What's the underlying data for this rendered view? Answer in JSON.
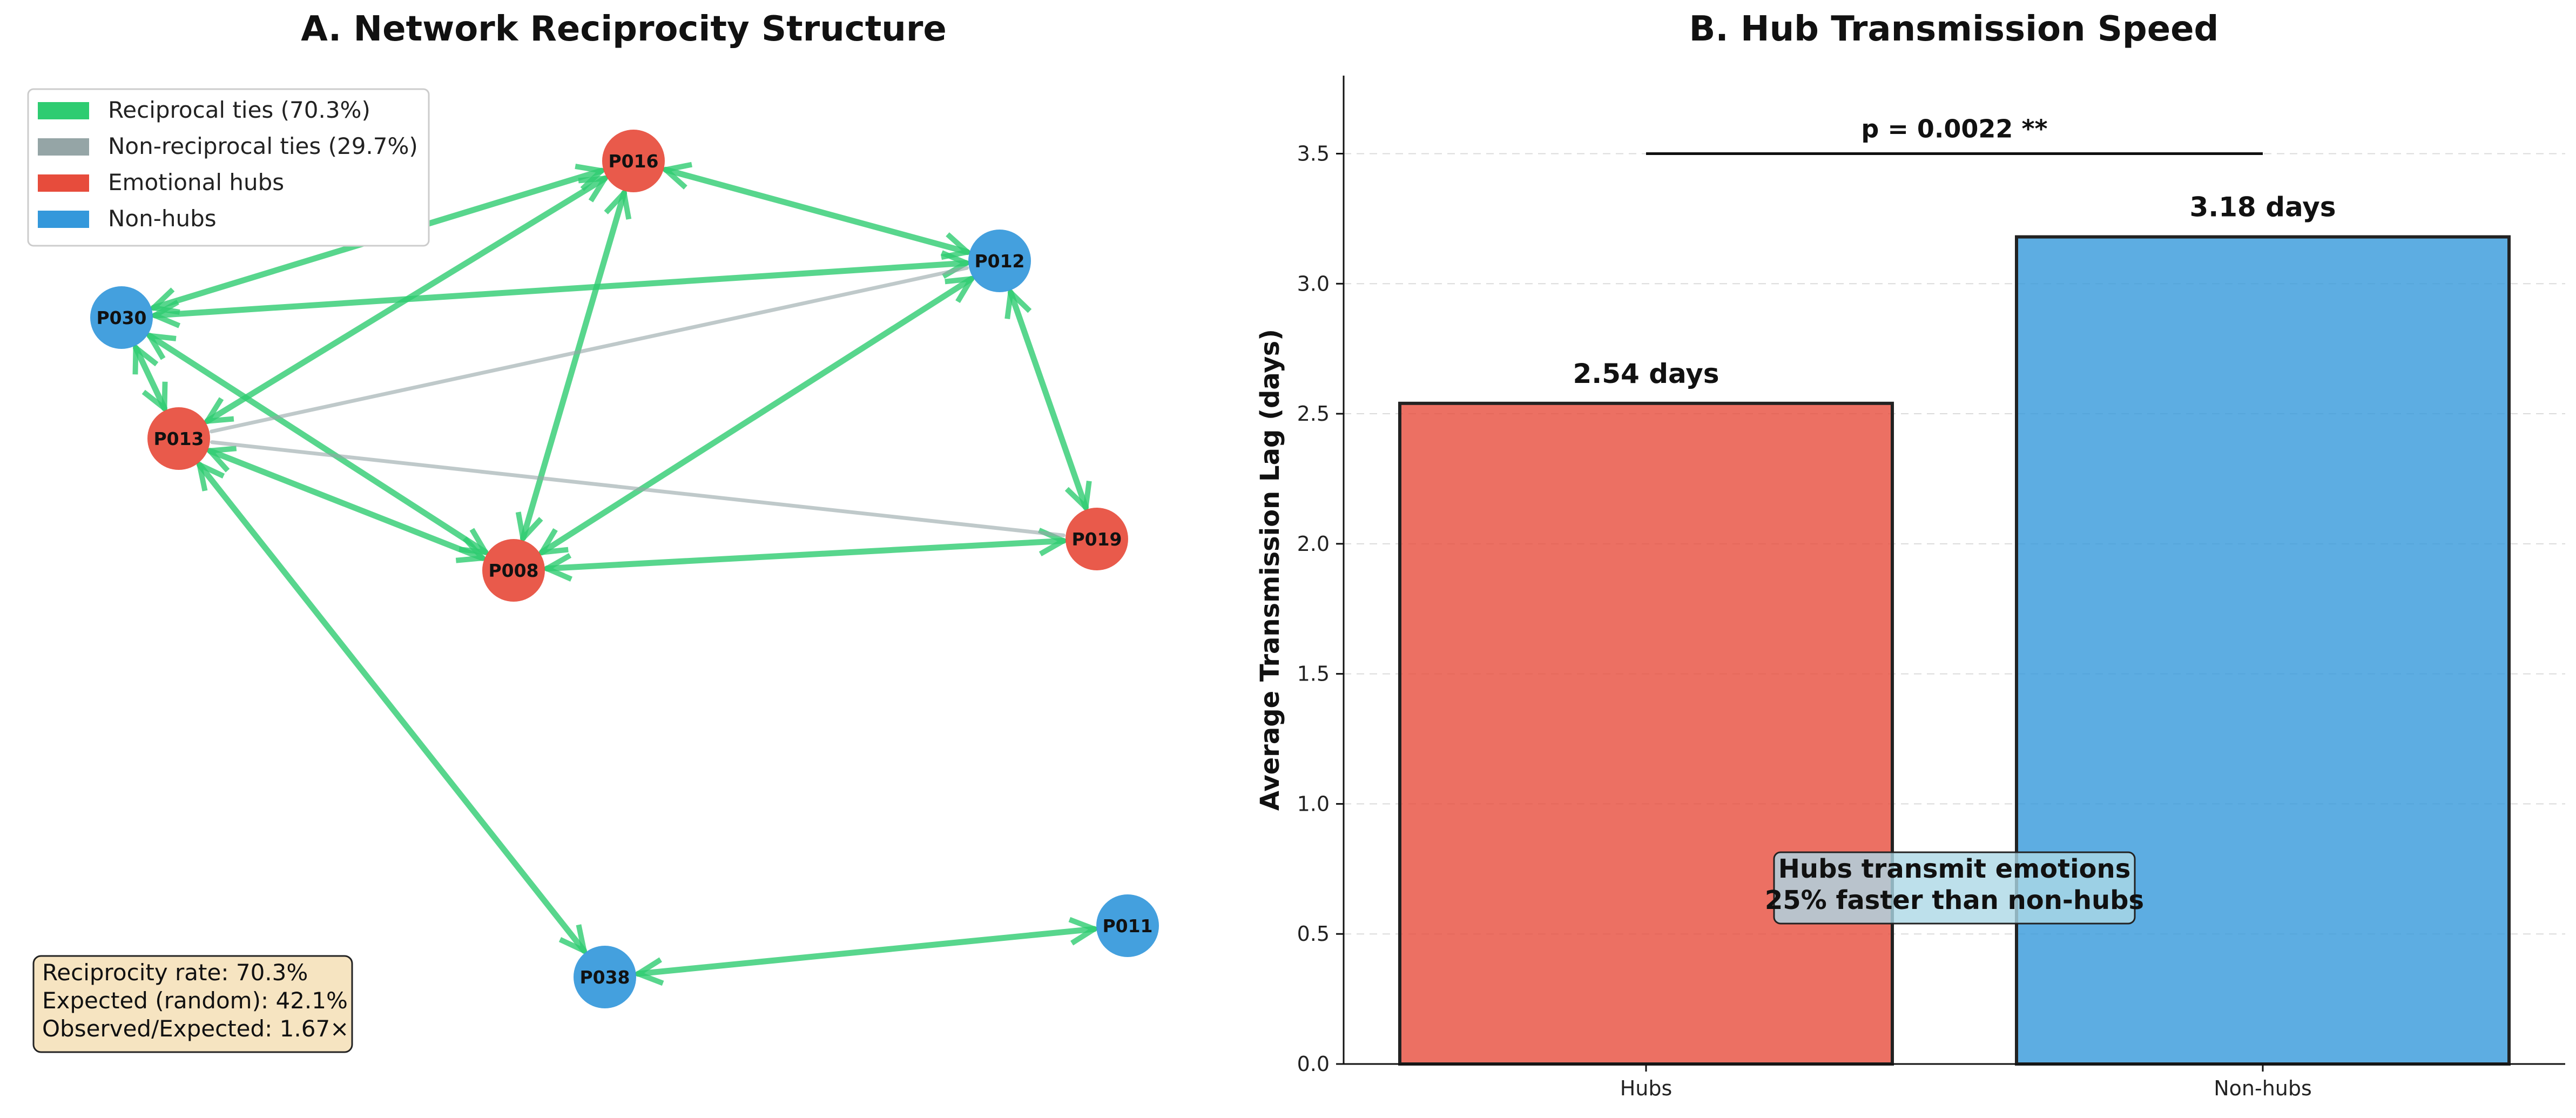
{
  "chart_data": [
    {
      "type": "network",
      "title": "A. Network Reciprocity Structure",
      "legend": [
        {
          "label": "Reciprocal ties (70.3%)",
          "color": "#2ecc71"
        },
        {
          "label": "Non-reciprocal ties (29.7%)",
          "color": "#95a5a6"
        },
        {
          "label": "Emotional hubs",
          "color": "#e74c3c"
        },
        {
          "label": "Non-hubs",
          "color": "#3498db"
        }
      ],
      "nodes": [
        {
          "id": "P016",
          "group": "hub"
        },
        {
          "id": "P012",
          "group": "nonhub"
        },
        {
          "id": "P030",
          "group": "nonhub"
        },
        {
          "id": "P013",
          "group": "hub"
        },
        {
          "id": "P008",
          "group": "hub"
        },
        {
          "id": "P019",
          "group": "hub"
        },
        {
          "id": "P038",
          "group": "nonhub"
        },
        {
          "id": "P011",
          "group": "nonhub"
        }
      ],
      "edges": [
        {
          "source": "P030",
          "target": "P016",
          "reciprocal": true
        },
        {
          "source": "P030",
          "target": "P012",
          "reciprocal": true
        },
        {
          "source": "P030",
          "target": "P013",
          "reciprocal": true
        },
        {
          "source": "P030",
          "target": "P008",
          "reciprocal": true
        },
        {
          "source": "P013",
          "target": "P016",
          "reciprocal": true
        },
        {
          "source": "P016",
          "target": "P008",
          "reciprocal": true
        },
        {
          "source": "P016",
          "target": "P012",
          "reciprocal": true
        },
        {
          "source": "P012",
          "target": "P008",
          "reciprocal": true
        },
        {
          "source": "P012",
          "target": "P019",
          "reciprocal": true
        },
        {
          "source": "P013",
          "target": "P008",
          "reciprocal": true
        },
        {
          "source": "P008",
          "target": "P019",
          "reciprocal": true
        },
        {
          "source": "P013",
          "target": "P038",
          "reciprocal": true
        },
        {
          "source": "P038",
          "target": "P011",
          "reciprocal": true
        },
        {
          "source": "P013",
          "target": "P012",
          "reciprocal": false
        },
        {
          "source": "P013",
          "target": "P019",
          "reciprocal": false
        }
      ],
      "stats": [
        "Reciprocity rate: 70.3%",
        "Expected (random): 42.1%",
        "Observed/Expected: 1.67×"
      ]
    },
    {
      "type": "bar",
      "title": "B. Hub Transmission Speed",
      "categories": [
        "Hubs",
        "Non-hubs"
      ],
      "values": [
        2.54,
        3.18
      ],
      "colors": [
        "#e74c3c",
        "#3498db"
      ],
      "bar_labels": [
        "2.54 days",
        "3.18 days"
      ],
      "ylabel": "Average Transmission Lag (days)",
      "ylim": [
        0,
        3.8
      ],
      "yticks": [
        0.0,
        0.5,
        1.0,
        1.5,
        2.0,
        2.5,
        3.0,
        3.5
      ],
      "ytick_labels": [
        "0.0",
        "0.5",
        "1.0",
        "1.5",
        "2.0",
        "2.5",
        "3.0",
        "3.5"
      ],
      "significance": {
        "text": "p = 0.0022 **",
        "level": 3.5
      },
      "annotation": [
        "Hubs transmit emotions",
        "25% faster than non-hubs"
      ]
    }
  ]
}
